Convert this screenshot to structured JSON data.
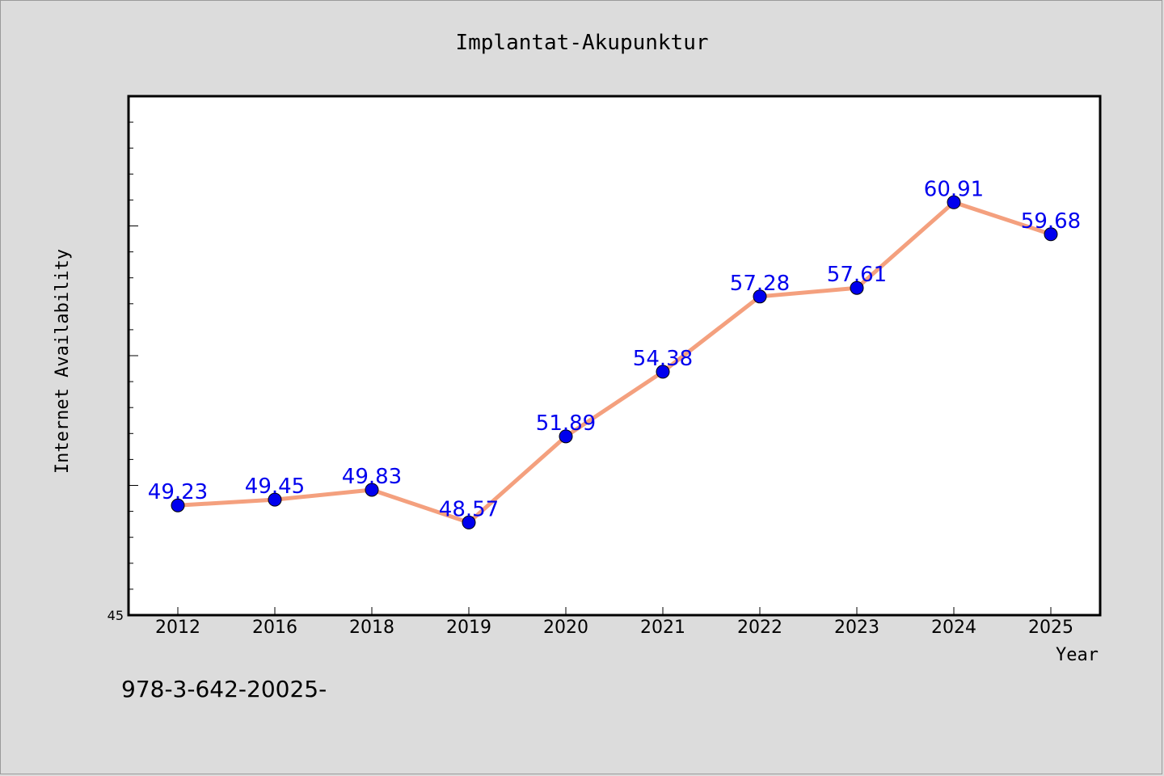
{
  "footer_text": "978-3-642-20025-",
  "chart_data": {
    "type": "line",
    "title": "Implantat-Akupunktur",
    "xlabel": "Year",
    "ylabel": "Internet Availability",
    "categories": [
      "2012",
      "2016",
      "2018",
      "2019",
      "2020",
      "2021",
      "2022",
      "2023",
      "2024",
      "2025"
    ],
    "values": [
      49.23,
      49.45,
      49.83,
      48.57,
      51.89,
      54.38,
      57.28,
      57.61,
      60.91,
      59.68
    ],
    "data_labels": [
      "49.23",
      "49.45",
      "49.83",
      "48.57",
      "51.89",
      "54.38",
      "57.28",
      "57.61",
      "60.91",
      "59.68"
    ],
    "ylim": [
      45,
      65
    ],
    "y_tick_labels": [
      "45"
    ],
    "grid": false,
    "line_color": "#f4a07e",
    "marker_color": "#0000ee",
    "label_color": "#0000ee",
    "plot_background": "#ffffff",
    "page_background": "#dcdcdc"
  }
}
